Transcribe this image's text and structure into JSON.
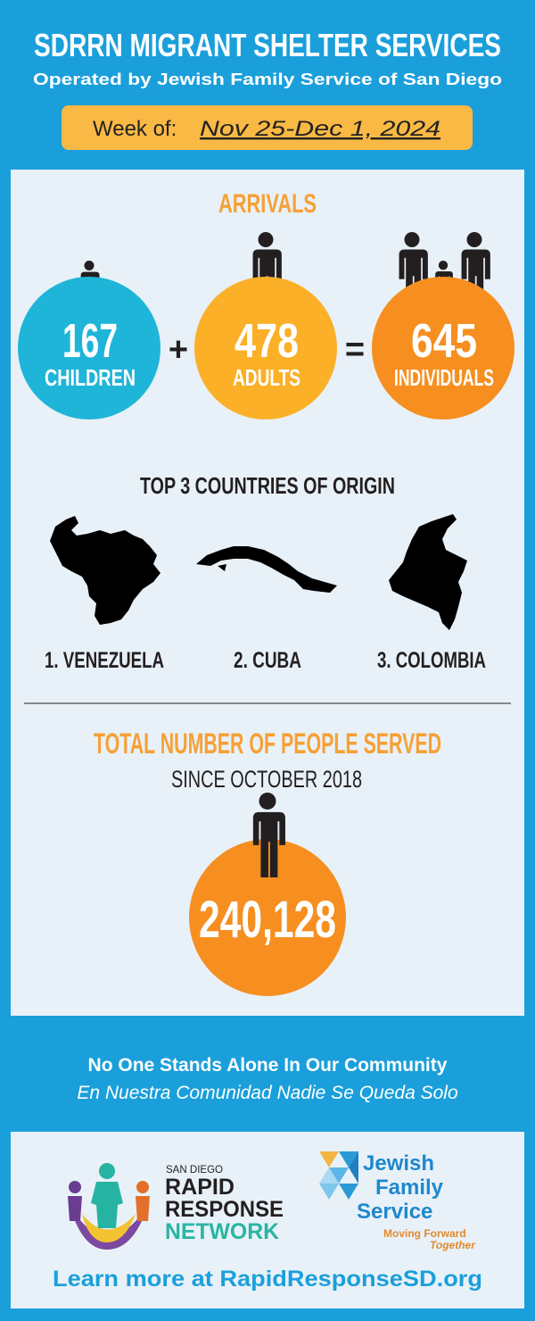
{
  "header": {
    "title": "SDRRN MIGRANT SHELTER SERVICES",
    "subtitle": "Operated by Jewish Family Service of San Diego",
    "week_label": "Week of:",
    "week": "Nov 25-Dec 1, 2024"
  },
  "arrivals": {
    "title": "ARRIVALS",
    "children": {
      "value": "167",
      "label": "CHILDREN"
    },
    "plus": "+",
    "adults": {
      "value": "478",
      "label": "ADULTS"
    },
    "equals": "=",
    "individuals": {
      "value": "645",
      "label": "INDIVIDUALS"
    }
  },
  "countries": {
    "title": "TOP 3 COUNTRIES OF ORIGIN",
    "items": [
      "1. VENEZUELA",
      "2. CUBA",
      "3. COLOMBIA"
    ]
  },
  "total": {
    "title": "TOTAL NUMBER OF PEOPLE SERVED",
    "subtitle": "SINCE OCTOBER 2018",
    "value": "240,128"
  },
  "footer": {
    "tagline": "No One Stands Alone In Our Community",
    "tagline_es": "En Nuestra Comunidad Nadie Se Queda Solo"
  },
  "logos": {
    "rrn": [
      "SAN DIEGO",
      "RAPID",
      "RESPONSE",
      "NETWORK"
    ],
    "jfs": [
      "Jewish",
      "Family",
      "Service"
    ],
    "jfs_motto": [
      "Moving Forward",
      "Together"
    ]
  },
  "link": "Learn more at RapidResponseSD.org"
}
